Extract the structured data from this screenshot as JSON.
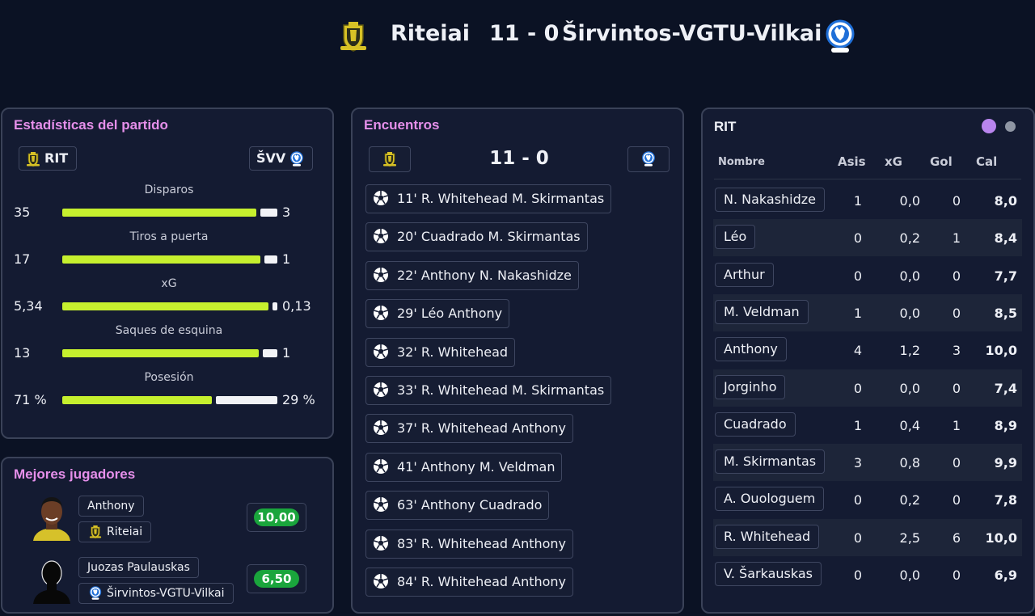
{
  "header": {
    "home_team": "Riteiai",
    "score": "11 - 0",
    "away_team": "Širvintos-VGTU-Vilkai"
  },
  "stats_panel": {
    "title": "Estadísticas del partido",
    "home_abbr": "RIT",
    "away_abbr": "ŠVV",
    "stats": [
      {
        "label": "Disparos",
        "home": "35",
        "away": "3",
        "home_share": 0.92
      },
      {
        "label": "Tiros a puerta",
        "home": "17",
        "away": "1",
        "home_share": 0.94
      },
      {
        "label": "xG",
        "home": "5,34",
        "away": "0,13",
        "home_share": 0.976
      },
      {
        "label": "Saques de esquina",
        "home": "13",
        "away": "1",
        "home_share": 0.93
      },
      {
        "label": "Posesión",
        "home": "71 %",
        "away": "29 %",
        "home_share": 0.71
      }
    ]
  },
  "best_players": {
    "title": "Mejores jugadores",
    "players": [
      {
        "name": "Anthony",
        "club": "Riteiai",
        "rating": "10,00"
      },
      {
        "name": "Juozas Paulauskas",
        "club": "Širvintos-VGTU-Vilkai",
        "rating": "6,50"
      }
    ]
  },
  "events_panel": {
    "title": "Encuentros",
    "score": "11 - 0",
    "events": [
      {
        "text": "11' R. Whitehead M. Skirmantas"
      },
      {
        "text": "20' Cuadrado M. Skirmantas"
      },
      {
        "text": "22' Anthony N. Nakashidze"
      },
      {
        "text": "29' Léo Anthony"
      },
      {
        "text": "32' R. Whitehead"
      },
      {
        "text": "33' R. Whitehead M. Skirmantas"
      },
      {
        "text": "37' R. Whitehead Anthony"
      },
      {
        "text": "41' Anthony M. Veldman"
      },
      {
        "text": "63' Anthony Cuadrado"
      },
      {
        "text": "83' R. Whitehead Anthony"
      },
      {
        "text": "84' R. Whitehead Anthony"
      }
    ]
  },
  "roster_panel": {
    "title": "RIT",
    "columns": {
      "name": "Nombre",
      "asis": "Asis",
      "xg": "xG",
      "gol": "Gol",
      "cal": "Cal"
    },
    "rows": [
      {
        "name": "N. Nakashidze",
        "asis": "1",
        "xg": "0,0",
        "gol": "0",
        "cal": "8,0"
      },
      {
        "name": "Léo",
        "asis": "0",
        "xg": "0,2",
        "gol": "1",
        "cal": "8,4"
      },
      {
        "name": "Arthur",
        "asis": "0",
        "xg": "0,0",
        "gol": "0",
        "cal": "7,7"
      },
      {
        "name": "M. Veldman",
        "asis": "1",
        "xg": "0,0",
        "gol": "0",
        "cal": "8,5"
      },
      {
        "name": "Anthony",
        "asis": "4",
        "xg": "1,2",
        "gol": "3",
        "cal": "10,0"
      },
      {
        "name": "Jorginho",
        "asis": "0",
        "xg": "0,0",
        "gol": "0",
        "cal": "7,4"
      },
      {
        "name": "Cuadrado",
        "asis": "1",
        "xg": "0,4",
        "gol": "1",
        "cal": "8,9"
      },
      {
        "name": "M. Skirmantas",
        "asis": "3",
        "xg": "0,8",
        "gol": "0",
        "cal": "9,9"
      },
      {
        "name": "A. Ouologuem",
        "asis": "0",
        "xg": "0,2",
        "gol": "0",
        "cal": "7,8"
      },
      {
        "name": "R. Whitehead",
        "asis": "0",
        "xg": "2,5",
        "gol": "6",
        "cal": "10,0"
      },
      {
        "name": "V. Šarkauskas",
        "asis": "0",
        "xg": "0,0",
        "gol": "0",
        "cal": "6,9"
      }
    ]
  },
  "icons": {
    "home_crest": "shield-crest-icon",
    "away_crest": "wolf-crest-icon",
    "event": "soccer-ball-icon"
  },
  "colors": {
    "background": "#0b1224",
    "panel": "#141b32",
    "accent_title": "#e58fea",
    "home_bar": "#c6f02e",
    "away_bar": "#f2f3f6",
    "rating_green": "#1aa53c",
    "home_crest": "#d7c126",
    "away_crest": "#1f6fd8"
  }
}
